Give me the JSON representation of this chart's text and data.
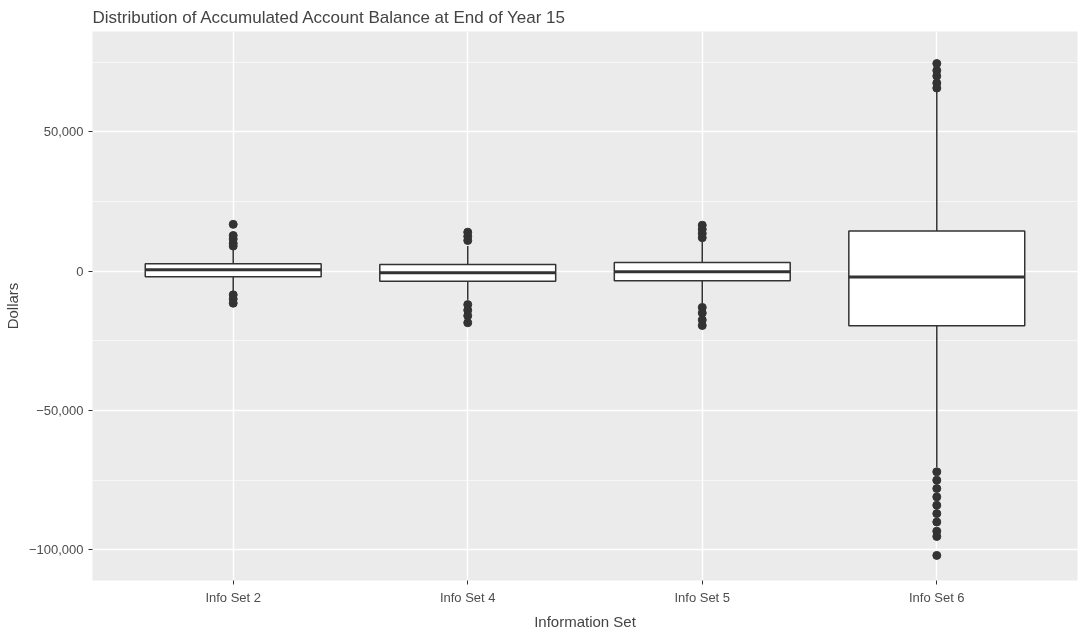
{
  "chart_data": {
    "type": "box",
    "title": "Distribution of Accumulated Account Balance at End of Year 15",
    "xlabel": "Information Set",
    "ylabel": "Dollars",
    "categories": [
      "Info Set 2",
      "Info Set 4",
      "Info Set 5",
      "Info Set 6"
    ],
    "boxes": [
      {
        "low": -7400,
        "q1": -2000,
        "median": 500,
        "q3": 2700,
        "high": 7600,
        "outliers": [
          16800,
          12800,
          11500,
          10000,
          9000,
          -8500,
          -10000,
          -11500
        ]
      },
      {
        "low": -10300,
        "q1": -3600,
        "median": -600,
        "q3": 2400,
        "high": 9000,
        "outliers": [
          14000,
          12500,
          11000,
          -12000,
          -14000,
          -16000,
          -18500
        ]
      },
      {
        "low": -11500,
        "q1": -3400,
        "median": -200,
        "q3": 3100,
        "high": 10500,
        "outliers": [
          16500,
          15000,
          13500,
          12000,
          -13000,
          -15000,
          -17500,
          -19500
        ]
      },
      {
        "low": -70400,
        "q1": -19600,
        "median": -2100,
        "q3": 14400,
        "high": 64700,
        "outliers": [
          74500,
          72000,
          70000,
          67500,
          65700,
          -72000,
          -75000,
          -78000,
          -81000,
          -84000,
          -87000,
          -90000,
          -93300,
          -95200,
          -102000
        ]
      }
    ],
    "ylim": [
      -111000,
      86000
    ],
    "yticks": [
      {
        "value": -100000,
        "label": "−100,000"
      },
      {
        "value": -50000,
        "label": "−50,000"
      },
      {
        "value": 0,
        "label": "0"
      },
      {
        "value": 50000,
        "label": "50,000"
      }
    ],
    "grid": true
  }
}
